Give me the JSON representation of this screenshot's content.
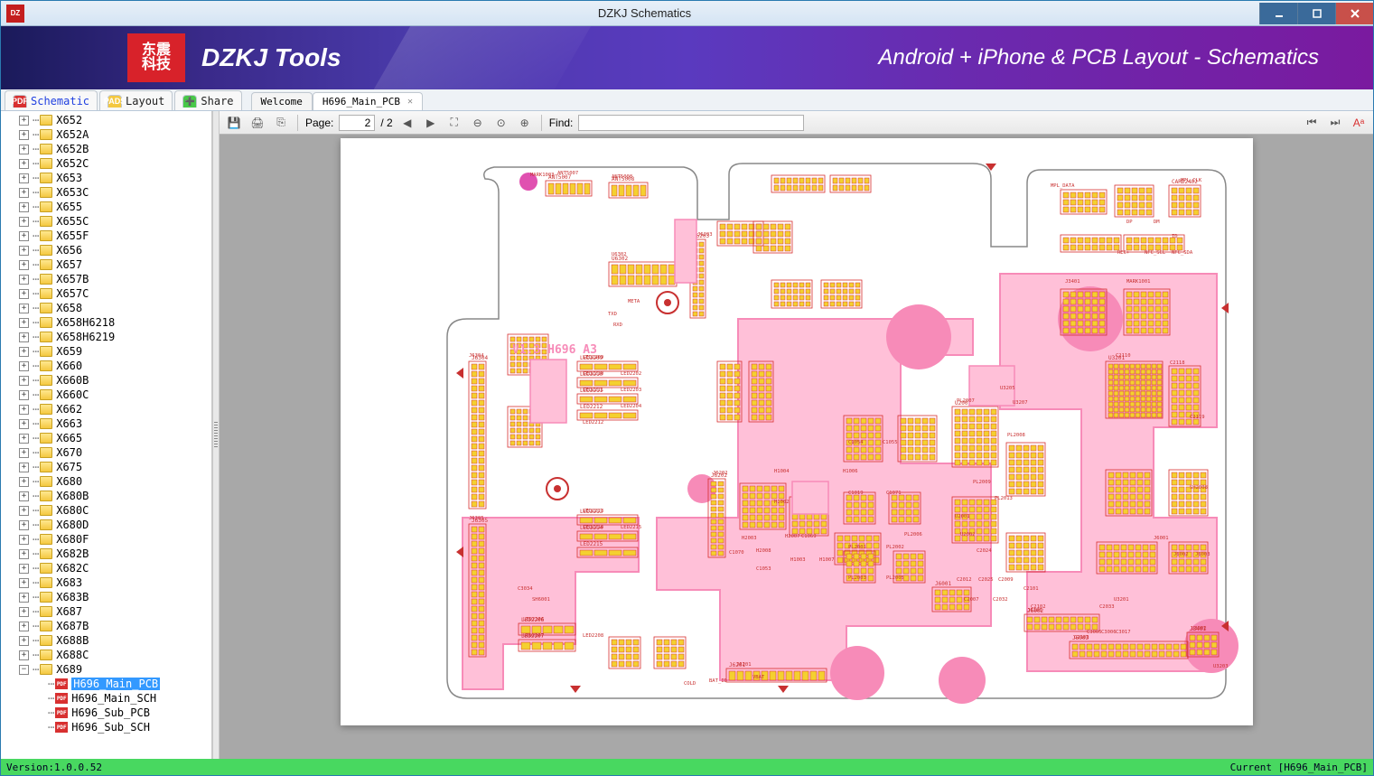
{
  "window": {
    "title": "DZKJ Schematics",
    "app_icon_text": "DZ"
  },
  "banner": {
    "logo_text": "东震\n科技",
    "brand": "DZKJ Tools",
    "slogan": "Android + iPhone & PCB Layout - Schematics"
  },
  "maintabs": [
    {
      "icon_bg": "#d83030",
      "icon_text": "PDF",
      "label": "Schematic",
      "label_color": "#2040e0"
    },
    {
      "icon_bg": "#f4c840",
      "icon_text": "PADS",
      "label": "Layout",
      "label_color": "#222"
    },
    {
      "icon_bg": "#48c848",
      "icon_text": "➕",
      "label": "Share",
      "label_color": "#222"
    }
  ],
  "subtabs": [
    {
      "label": "Welcome",
      "active": false,
      "closable": false
    },
    {
      "label": "H696_Main_PCB",
      "active": true,
      "closable": true
    }
  ],
  "tree": {
    "items": [
      "X652",
      "X652A",
      "X652B",
      "X652C",
      "X653",
      "X653C",
      "X655",
      "X655C",
      "X655F",
      "X656",
      "X657",
      "X657B",
      "X657C",
      "X658",
      "X658H6218",
      "X658H6219",
      "X659",
      "X660",
      "X660B",
      "X660C",
      "X662",
      "X663",
      "X665",
      "X670",
      "X675",
      "X680",
      "X680B",
      "X680C",
      "X680D",
      "X680F",
      "X682B",
      "X682C",
      "X683",
      "X683B",
      "X687",
      "X687B",
      "X688B",
      "X688C"
    ],
    "expanded_item": "X689",
    "children": [
      {
        "label": "H696_Main_PCB",
        "selected": true
      },
      {
        "label": "H696_Main_SCH",
        "selected": false
      },
      {
        "label": "H696_Sub_PCB",
        "selected": false
      },
      {
        "label": "H696_Sub_SCH",
        "selected": false
      }
    ]
  },
  "toolbar": {
    "page_label": "Page:",
    "page_current": "2",
    "page_total": "/ 2",
    "find_label": "Find:",
    "find_value": ""
  },
  "pcb": {
    "board_label": "V1.3 H696  A3",
    "colors": {
      "outline": "#888",
      "copper": "#f78bb8",
      "copper_fill": "#ffc0d8",
      "pad": "#f4d030",
      "pad_border": "#d83030",
      "silk": "#c83030",
      "bg": "#ffffff"
    },
    "sample_refs": [
      "MARK1003",
      "ANT5007",
      "ANT5008",
      "U6302",
      "J6203",
      "META",
      "TXD",
      "RXD",
      "LED2209",
      "LED2210",
      "LED2202",
      "LED2211",
      "LED2203",
      "LED2204",
      "LED2212",
      "LED2213",
      "LED2214",
      "LED2215",
      "LED2206",
      "LED2207",
      "LED2208",
      "J6304",
      "J6305",
      "J6202",
      "J6201",
      "J6106",
      "VBAT",
      "BAT_ID",
      "COLD",
      "H1004",
      "H1002",
      "H1003",
      "H1007",
      "H1006",
      "H2003",
      "H2008",
      "H2007",
      "C1069",
      "C1070",
      "C1053",
      "C1054",
      "C1055",
      "C1019",
      "C1071",
      "PL2001",
      "PL2002",
      "PL2003",
      "PL2005",
      "PL2006",
      "PL2007",
      "PL2008",
      "PL2009",
      "PL2013",
      "U2001",
      "U2002",
      "C2024",
      "C2012",
      "C2025",
      "C2009",
      "C2007",
      "C2032",
      "C2033",
      "C2101",
      "C2102",
      "C2103",
      "C2110",
      "C2118",
      "C2119",
      "SH2008",
      "J6001",
      "J6002",
      "J6003",
      "U3201",
      "U3202",
      "U3203",
      "U3205",
      "U3207",
      "C3005",
      "C3006",
      "C3017",
      "C3034",
      "SH6001",
      "J3401",
      "MARK1001",
      "MPL_DATA",
      "MPL_CLK",
      "DM",
      "DP",
      "ID",
      "NFC_SCL",
      "NFC_SDA",
      "REC+",
      "REC-",
      "IC-CAST",
      "IC-GND",
      "RLED",
      "ANT5009",
      "CARD2402",
      "C3405",
      "L3403",
      "R3403",
      "R3408",
      "R3404",
      "R3405"
    ]
  },
  "statusbar": {
    "version": "Version:1.0.0.52",
    "current": "Current [H696_Main_PCB]"
  }
}
